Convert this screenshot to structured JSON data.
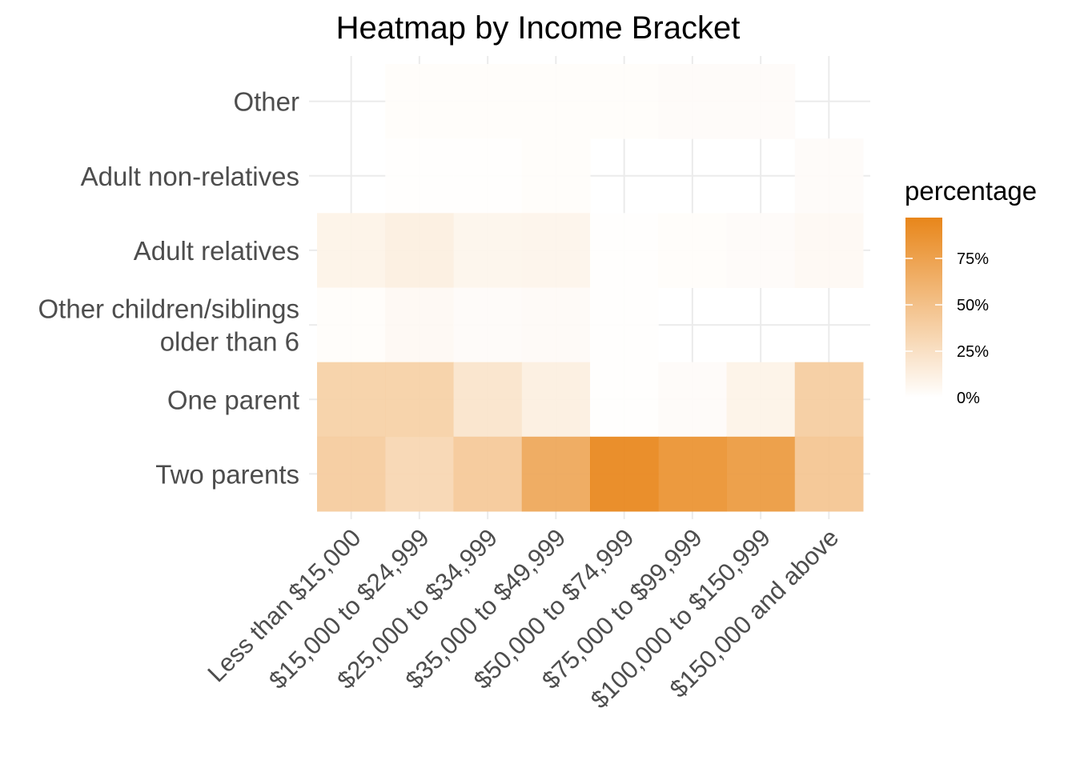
{
  "chart_data": {
    "type": "heatmap",
    "title": "Heatmap by Income Bracket",
    "xlabel": "",
    "ylabel": "",
    "x_categories": [
      "Less than $15,000",
      "$15,000 to $24,999",
      "$25,000 to $34,999",
      "$35,000 to $49,999",
      "$50,000 to $74,999",
      "$75,000 to $99,999",
      "$100,000 to $150,999",
      "$150,000 and above"
    ],
    "y_categories": [
      "Other",
      "Adult non-relatives",
      "Adult relatives",
      "Other children/siblings older than 6",
      "One parent",
      "Two parents"
    ],
    "values": [
      [
        null,
        2,
        2,
        2,
        2,
        3,
        3,
        null
      ],
      [
        null,
        1,
        1,
        2,
        null,
        null,
        null,
        3
      ],
      [
        10,
        13,
        8,
        9,
        1,
        2,
        3,
        5
      ],
      [
        2,
        5,
        3,
        4,
        1,
        null,
        null,
        null
      ],
      [
        38,
        38,
        22,
        13,
        1,
        3,
        10,
        41
      ],
      [
        42,
        33,
        44,
        71,
        97,
        88,
        82,
        47
      ]
    ],
    "value_unit": "%",
    "legend": {
      "title": "percentage",
      "placement": "right",
      "ticks": [
        "75%",
        "50%",
        "25%",
        "0%"
      ],
      "tick_values": [
        75,
        50,
        25,
        0
      ],
      "min": 0,
      "max": 97
    },
    "colors": {
      "low": "#ffffff",
      "high": "#e8861a"
    },
    "grid": true
  }
}
